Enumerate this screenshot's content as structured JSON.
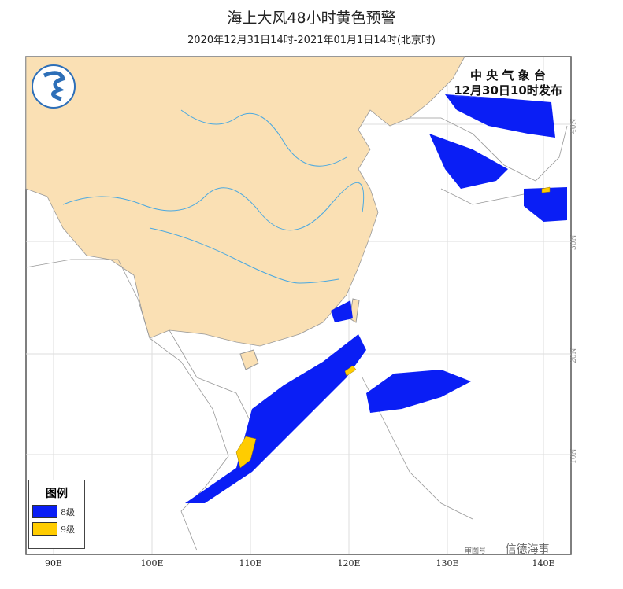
{
  "title": "海上大风48小时黄色预警",
  "subtitle": "2020年12月31日14时-2021年01月1日14时(北京时)",
  "issuer": {
    "name": "中 央 气 象 台",
    "issued": "12月30日10时发布"
  },
  "longitude_labels": [
    "90E",
    "100E",
    "110E",
    "120E",
    "130E",
    "140E"
  ],
  "latitude_labels": [
    "40N",
    "30N",
    "20N",
    "10N"
  ],
  "legend": {
    "title": "图例",
    "items": [
      {
        "label": "8级",
        "color": "#0a1ef5"
      },
      {
        "label": "9级",
        "color": "#ffcc00"
      }
    ]
  },
  "colors": {
    "land_china": "#fae0b4",
    "sea": "#ffffff",
    "rivers": "#4aa8e0",
    "borders": "#999999"
  },
  "watermark": {
    "small": "审图号",
    "text": "信德海事"
  }
}
